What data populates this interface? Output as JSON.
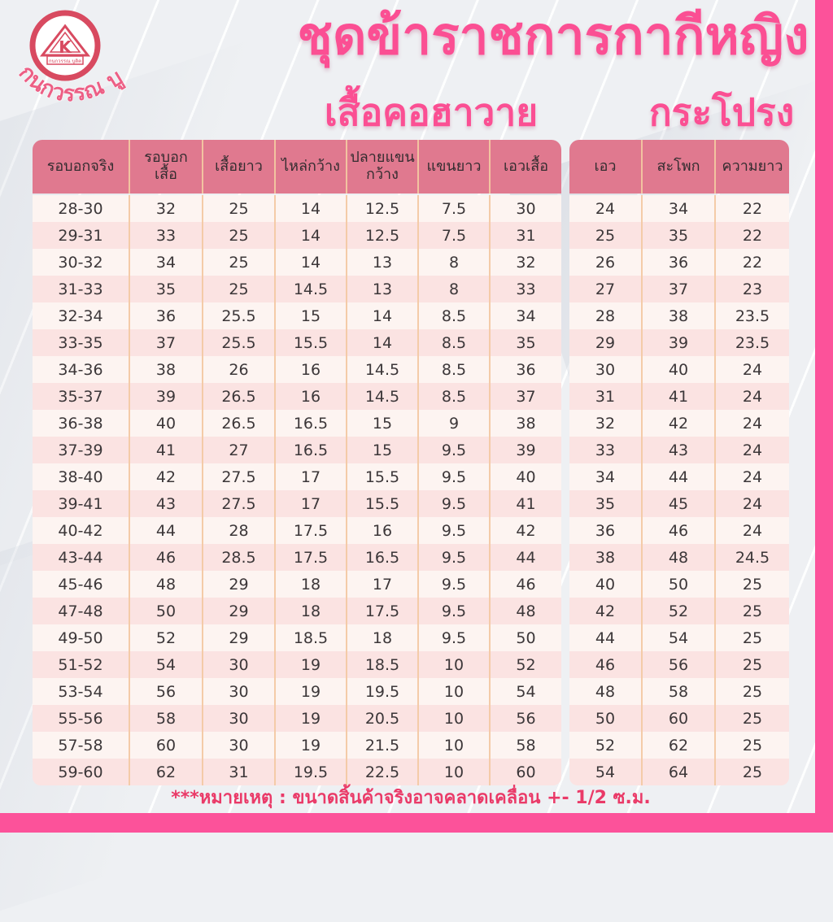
{
  "logo": {
    "brand_text": "กนกวรรณ บูติค",
    "badge_letter": "K",
    "badge_banner_text": "กนกวรรณ บูติค"
  },
  "header": {
    "title": "ชุดข้าราชการกากีหญิง",
    "left_subtitle": "เสื้อคอฮาวาย",
    "right_subtitle": "กระโปรง"
  },
  "chart_data": [
    {
      "type": "table",
      "title": "เสื้อคอฮาวาย",
      "columns": [
        "รอบอกจริง",
        "รอบอก เสื้อ",
        "เสื้อยาว",
        "ไหล่กว้าง",
        "ปลายแขน กว้าง",
        "แขนยาว",
        "เอวเสื้อ"
      ],
      "rows": [
        [
          "28-30",
          "32",
          "25",
          "14",
          "12.5",
          "7.5",
          "30"
        ],
        [
          "29-31",
          "33",
          "25",
          "14",
          "12.5",
          "7.5",
          "31"
        ],
        [
          "30-32",
          "34",
          "25",
          "14",
          "13",
          "8",
          "32"
        ],
        [
          "31-33",
          "35",
          "25",
          "14.5",
          "13",
          "8",
          "33"
        ],
        [
          "32-34",
          "36",
          "25.5",
          "15",
          "14",
          "8.5",
          "34"
        ],
        [
          "33-35",
          "37",
          "25.5",
          "15.5",
          "14",
          "8.5",
          "35"
        ],
        [
          "34-36",
          "38",
          "26",
          "16",
          "14.5",
          "8.5",
          "36"
        ],
        [
          "35-37",
          "39",
          "26.5",
          "16",
          "14.5",
          "8.5",
          "37"
        ],
        [
          "36-38",
          "40",
          "26.5",
          "16.5",
          "15",
          "9",
          "38"
        ],
        [
          "37-39",
          "41",
          "27",
          "16.5",
          "15",
          "9.5",
          "39"
        ],
        [
          "38-40",
          "42",
          "27.5",
          "17",
          "15.5",
          "9.5",
          "40"
        ],
        [
          "39-41",
          "43",
          "27.5",
          "17",
          "15.5",
          "9.5",
          "41"
        ],
        [
          "40-42",
          "44",
          "28",
          "17.5",
          "16",
          "9.5",
          "42"
        ],
        [
          "43-44",
          "46",
          "28.5",
          "17.5",
          "16.5",
          "9.5",
          "44"
        ],
        [
          "45-46",
          "48",
          "29",
          "18",
          "17",
          "9.5",
          "46"
        ],
        [
          "47-48",
          "50",
          "29",
          "18",
          "17.5",
          "9.5",
          "48"
        ],
        [
          "49-50",
          "52",
          "29",
          "18.5",
          "18",
          "9.5",
          "50"
        ],
        [
          "51-52",
          "54",
          "30",
          "19",
          "18.5",
          "10",
          "52"
        ],
        [
          "53-54",
          "56",
          "30",
          "19",
          "19.5",
          "10",
          "54"
        ],
        [
          "55-56",
          "58",
          "30",
          "19",
          "20.5",
          "10",
          "56"
        ],
        [
          "57-58",
          "60",
          "30",
          "19",
          "21.5",
          "10",
          "58"
        ],
        [
          "59-60",
          "62",
          "31",
          "19.5",
          "22.5",
          "10",
          "60"
        ]
      ]
    },
    {
      "type": "table",
      "title": "กระโปรง",
      "columns": [
        "เอว",
        "สะโพก",
        "ความยาว"
      ],
      "rows": [
        [
          "24",
          "34",
          "22"
        ],
        [
          "25",
          "35",
          "22"
        ],
        [
          "26",
          "36",
          "22"
        ],
        [
          "27",
          "37",
          "23"
        ],
        [
          "28",
          "38",
          "23.5"
        ],
        [
          "29",
          "39",
          "23.5"
        ],
        [
          "30",
          "40",
          "24"
        ],
        [
          "31",
          "41",
          "24"
        ],
        [
          "32",
          "42",
          "24"
        ],
        [
          "33",
          "43",
          "24"
        ],
        [
          "34",
          "44",
          "24"
        ],
        [
          "35",
          "45",
          "24"
        ],
        [
          "36",
          "46",
          "24"
        ],
        [
          "38",
          "48",
          "24.5"
        ],
        [
          "40",
          "50",
          "25"
        ],
        [
          "42",
          "52",
          "25"
        ],
        [
          "44",
          "54",
          "25"
        ],
        [
          "46",
          "56",
          "25"
        ],
        [
          "48",
          "58",
          "25"
        ],
        [
          "50",
          "60",
          "25"
        ],
        [
          "52",
          "62",
          "25"
        ],
        [
          "54",
          "64",
          "25"
        ]
      ]
    }
  ],
  "footer": {
    "note": "***หมายเหตุ  : ขนาดสิ้นค้าจริงอาจคลาดเคลื่อน +- 1/2 ซ.ม."
  },
  "colors": {
    "accent_pink": "#fb4f93",
    "bar_pink": "#fc529a",
    "table_header_pink": "#e0798f",
    "row_light": "#fdf4f1",
    "row_dark": "#fbe3e2",
    "column_divider": "#f4cba8",
    "note_red": "#ea3a68",
    "logo_red": "#d84a60",
    "text_dark": "#3c3739"
  }
}
